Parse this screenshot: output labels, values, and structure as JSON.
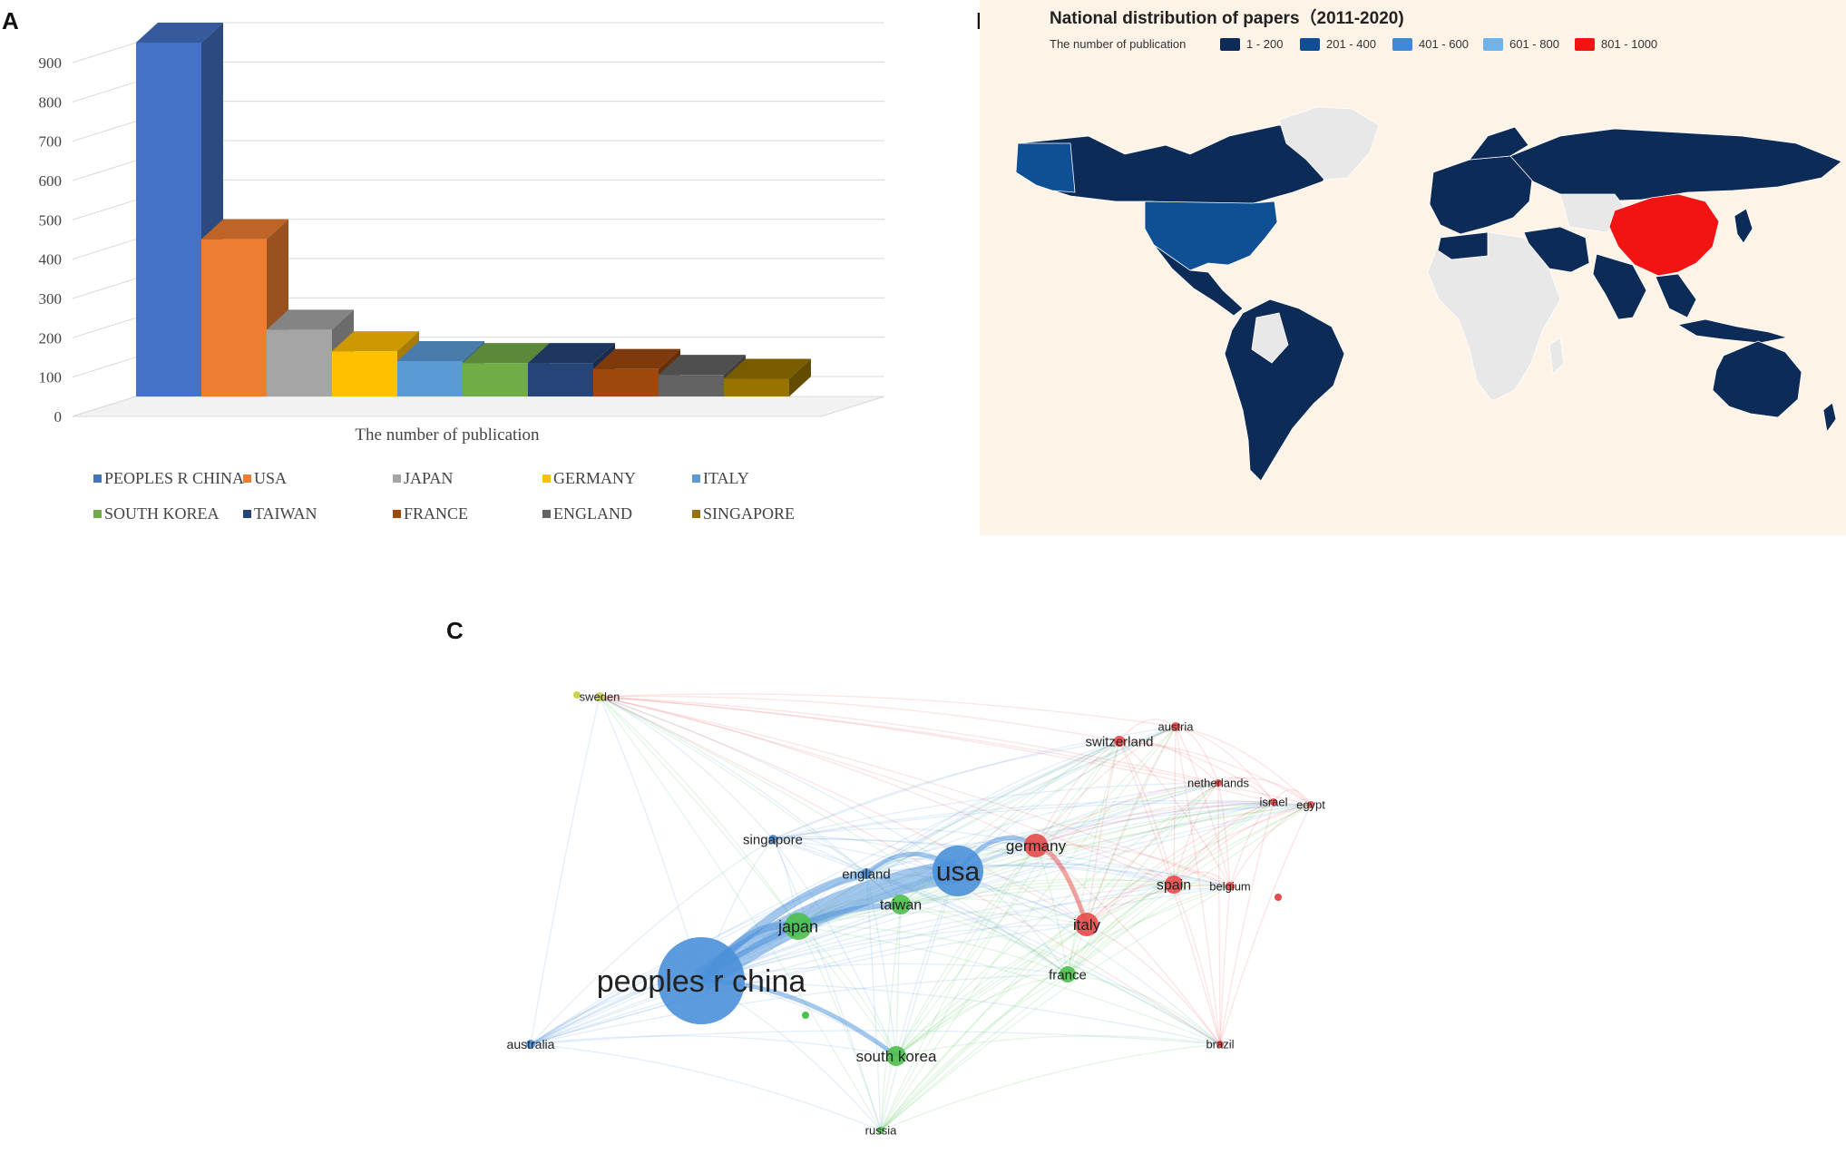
{
  "figure": {
    "panels": {
      "a": "A",
      "b": "B",
      "c": "C"
    }
  },
  "chart_data": [
    {
      "type": "bar",
      "panel": "A",
      "style": "3d",
      "categories": [
        "PEOPLES R CHINA",
        "USA",
        "JAPAN",
        "GERMANY",
        "ITALY",
        "SOUTH KOREA",
        "TAIWAN",
        "FRANCE",
        "ENGLAND",
        "SINGAPORE"
      ],
      "values": [
        900,
        400,
        170,
        115,
        90,
        85,
        85,
        70,
        55,
        45
      ],
      "colors": [
        "#4472c4",
        "#ed7d31",
        "#a5a5a5",
        "#ffc000",
        "#5b9bd5",
        "#70ad47",
        "#264478",
        "#9e480e",
        "#636363",
        "#997300"
      ],
      "title": "",
      "xlabel": "The number of publication",
      "ylabel": "",
      "ylim": [
        0,
        900
      ],
      "yticks": [
        "0",
        "100",
        "200",
        "300",
        "400",
        "500",
        "600",
        "700",
        "800",
        "900"
      ],
      "grid": true,
      "legend": "bottom"
    },
    {
      "type": "map",
      "panel": "B",
      "title": "National distribution of papers（2011-2020)",
      "legend_title": "The number of publication",
      "legend": [
        {
          "label": "1 - 200",
          "color": "#0d2b57"
        },
        {
          "label": "201 - 400",
          "color": "#0e4f95"
        },
        {
          "label": "401 - 600",
          "color": "#3d8ad6"
        },
        {
          "label": "601 - 800",
          "color": "#6fb3ea"
        },
        {
          "label": "801 - 1000",
          "color": "#f21313"
        }
      ],
      "background": "#fdf3e6",
      "no_data_color": "#e8e8e8"
    },
    {
      "type": "network",
      "panel": "C",
      "nodes": [
        {
          "id": "peoples r china",
          "cluster": "blue",
          "size": 5
        },
        {
          "id": "usa",
          "cluster": "blue",
          "size": 4
        },
        {
          "id": "england",
          "cluster": "blue",
          "size": 1
        },
        {
          "id": "singapore",
          "cluster": "blue",
          "size": 1
        },
        {
          "id": "australia",
          "cluster": "blue",
          "size": 1
        },
        {
          "id": "japan",
          "cluster": "green",
          "size": 2
        },
        {
          "id": "taiwan",
          "cluster": "green",
          "size": 2
        },
        {
          "id": "south korea",
          "cluster": "green",
          "size": 2
        },
        {
          "id": "france",
          "cluster": "green",
          "size": 2
        },
        {
          "id": "russia",
          "cluster": "green",
          "size": 1
        },
        {
          "id": "germany",
          "cluster": "red",
          "size": 2
        },
        {
          "id": "italy",
          "cluster": "red",
          "size": 2
        },
        {
          "id": "spain",
          "cluster": "red",
          "size": 2
        },
        {
          "id": "switzerland",
          "cluster": "red",
          "size": 1
        },
        {
          "id": "austria",
          "cluster": "red",
          "size": 1
        },
        {
          "id": "netherlands",
          "cluster": "red",
          "size": 1
        },
        {
          "id": "israel",
          "cluster": "red",
          "size": 1
        },
        {
          "id": "egypt",
          "cluster": "red",
          "size": 1
        },
        {
          "id": "belgium",
          "cluster": "red",
          "size": 1
        },
        {
          "id": "brazil",
          "cluster": "red",
          "size": 1
        },
        {
          "id": "sweden",
          "cluster": "yellow",
          "size": 1
        }
      ],
      "cluster_colors": {
        "blue": "#4a90d9",
        "green": "#4cbf4c",
        "red": "#e84a4a",
        "yellow": "#c8d44a"
      }
    }
  ]
}
